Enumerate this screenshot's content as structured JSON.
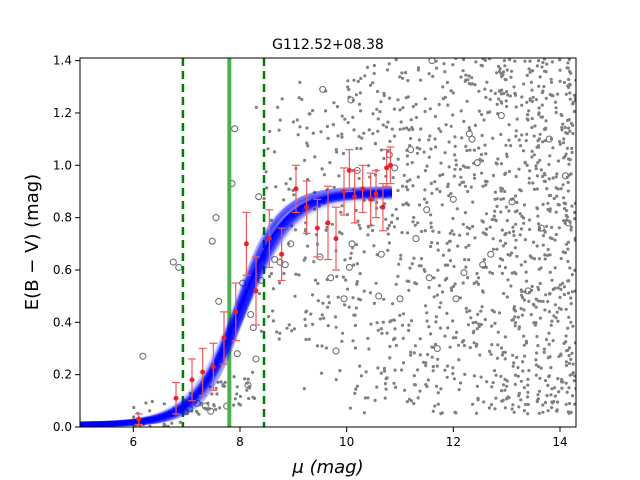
{
  "chart_data": {
    "type": "scatter",
    "title": "G112.52+08.38",
    "xlabel": "μ (mag)",
    "ylabel": "E(B − V) (mag)",
    "xlim": [
      5.0,
      14.3
    ],
    "ylim": [
      0.0,
      1.41
    ],
    "xticks": [
      6,
      8,
      10,
      12,
      14
    ],
    "yticks": [
      0.0,
      0.2,
      0.4,
      0.6,
      0.8,
      1.0,
      1.2,
      1.4
    ],
    "xtick_labels": [
      "6",
      "8",
      "10",
      "12",
      "14"
    ],
    "ytick_labels": [
      "0.0",
      "0.2",
      "0.4",
      "0.6",
      "0.8",
      "1.0",
      "1.2",
      "1.4"
    ],
    "colors": {
      "field_stars": "#808080",
      "binned_points": "#e8232a",
      "errorbars": "#ee5a5a",
      "model_curve": "#0000ff",
      "distance_line": "#4caf50",
      "uncertainty_lines": "#008000"
    },
    "model": {
      "type": "logistic",
      "base": 0.01,
      "plateau": 0.895,
      "center_mu": 8.0,
      "width": 0.42,
      "mu_range": [
        5.0,
        10.85
      ],
      "band_halfwidth": 0.018
    },
    "cloud_distance_mu": 7.8,
    "cloud_distance_uncertainty_mu": [
      6.93,
      8.45
    ],
    "binned_points": [
      {
        "x": 6.1,
        "y": 0.03,
        "err": 0.02
      },
      {
        "x": 6.8,
        "y": 0.11,
        "err": 0.06
      },
      {
        "x": 7.1,
        "y": 0.18,
        "err": 0.08
      },
      {
        "x": 7.3,
        "y": 0.21,
        "err": 0.09
      },
      {
        "x": 7.5,
        "y": 0.23,
        "err": 0.09
      },
      {
        "x": 7.7,
        "y": 0.34,
        "err": 0.1
      },
      {
        "x": 7.92,
        "y": 0.44,
        "err": 0.11
      },
      {
        "x": 8.12,
        "y": 0.7,
        "err": 0.12
      },
      {
        "x": 8.3,
        "y": 0.52,
        "err": 0.13
      },
      {
        "x": 8.55,
        "y": 0.72,
        "err": 0.11
      },
      {
        "x": 8.78,
        "y": 0.66,
        "err": 0.1
      },
      {
        "x": 9.05,
        "y": 0.91,
        "err": 0.09
      },
      {
        "x": 9.25,
        "y": 0.84,
        "err": 0.1
      },
      {
        "x": 9.45,
        "y": 0.76,
        "err": 0.11
      },
      {
        "x": 9.65,
        "y": 0.78,
        "err": 0.14
      },
      {
        "x": 9.8,
        "y": 0.72,
        "err": 0.12
      },
      {
        "x": 9.95,
        "y": 0.9,
        "err": 0.09
      },
      {
        "x": 10.05,
        "y": 0.98,
        "err": 0.08
      },
      {
        "x": 10.15,
        "y": 0.88,
        "err": 0.1
      },
      {
        "x": 10.3,
        "y": 0.91,
        "err": 0.09
      },
      {
        "x": 10.45,
        "y": 0.87,
        "err": 0.1
      },
      {
        "x": 10.55,
        "y": 0.89,
        "err": 0.09
      },
      {
        "x": 10.68,
        "y": 0.84,
        "err": 0.09
      },
      {
        "x": 10.75,
        "y": 0.99,
        "err": 0.07
      },
      {
        "x": 10.82,
        "y": 1.0,
        "err": 0.07
      }
    ],
    "open_circles": [
      [
        6.18,
        0.27
      ],
      [
        6.75,
        0.63
      ],
      [
        6.85,
        0.61
      ],
      [
        7.05,
        0.07
      ],
      [
        7.2,
        0.09
      ],
      [
        7.35,
        0.08
      ],
      [
        7.45,
        0.06
      ],
      [
        7.48,
        0.71
      ],
      [
        7.55,
        0.8
      ],
      [
        7.6,
        0.48
      ],
      [
        7.75,
        0.08
      ],
      [
        7.85,
        0.93
      ],
      [
        7.9,
        1.14
      ],
      [
        7.95,
        0.28
      ],
      [
        8.05,
        0.55
      ],
      [
        8.15,
        0.16
      ],
      [
        8.2,
        0.43
      ],
      [
        8.25,
        0.38
      ],
      [
        8.3,
        0.26
      ],
      [
        8.35,
        0.88
      ],
      [
        8.4,
        0.56
      ],
      [
        8.65,
        0.64
      ],
      [
        8.75,
        0.63
      ],
      [
        8.85,
        0.62
      ],
      [
        8.95,
        0.7
      ],
      [
        9.5,
        0.65
      ],
      [
        9.55,
        1.29
      ],
      [
        9.7,
        0.57
      ],
      [
        9.8,
        0.29
      ],
      [
        9.95,
        0.49
      ],
      [
        10.05,
        0.61
      ],
      [
        10.08,
        1.25
      ],
      [
        10.1,
        0.7
      ],
      [
        10.2,
        0.98
      ],
      [
        10.6,
        0.5
      ],
      [
        10.65,
        0.66
      ],
      [
        10.8,
        1.04
      ],
      [
        10.9,
        0.99
      ],
      [
        11.0,
        0.49
      ],
      [
        11.2,
        1.06
      ],
      [
        11.3,
        0.72
      ],
      [
        11.5,
        0.83
      ],
      [
        11.55,
        0.57
      ],
      [
        11.6,
        1.4
      ],
      [
        11.7,
        0.3
      ],
      [
        12.0,
        0.87
      ],
      [
        12.05,
        0.49
      ],
      [
        12.2,
        0.59
      ],
      [
        12.3,
        1.12
      ],
      [
        12.35,
        1.1
      ],
      [
        12.45,
        1.01
      ],
      [
        12.55,
        0.62
      ],
      [
        12.9,
        1.19
      ],
      [
        13.1,
        0.86
      ],
      [
        13.4,
        0.52
      ],
      [
        13.65,
        0.76
      ],
      [
        13.8,
        1.1
      ],
      [
        14.1,
        0.96
      ],
      [
        14.15,
        0.78
      ],
      [
        12.7,
        0.66
      ]
    ],
    "field_stars": {
      "description": "small grey dots: foreground stars at low E(B-V) for mu < 8, dense scatter between E(B-V) 0.05 and 1.41 for mu > 8.5",
      "count": 1400,
      "xrange": [
        6.0,
        14.3
      ],
      "yrange": [
        0.0,
        1.41
      ]
    }
  }
}
